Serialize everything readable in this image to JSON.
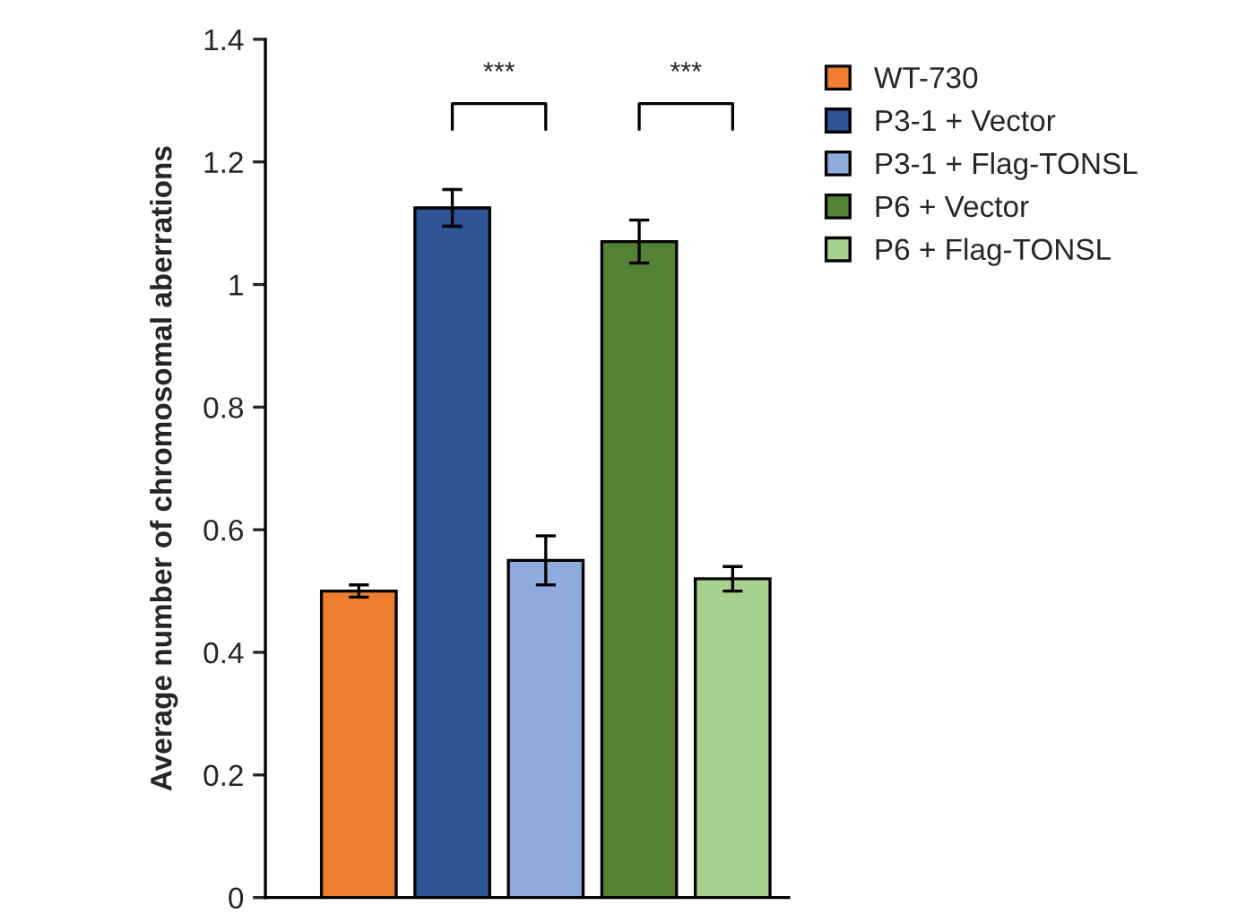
{
  "chart_data": {
    "type": "bar",
    "ylabel": "Average number of chromosomal aberrations",
    "categories": [
      null,
      null,
      null,
      null,
      null
    ],
    "series": [
      {
        "name": "WT-730",
        "color": "#ed7d31",
        "values": [
          0.5,
          null,
          null,
          null,
          null
        ],
        "errors": [
          0.01,
          null,
          null,
          null,
          null
        ]
      },
      {
        "name": "P3-1 + Vector",
        "color": "#2f5597",
        "values": [
          null,
          1.125,
          null,
          null,
          null
        ],
        "errors": [
          null,
          0.03,
          null,
          null,
          null
        ]
      },
      {
        "name": "P3-1 + Flag-TONSL",
        "color": "#8faadc",
        "values": [
          null,
          null,
          0.55,
          null,
          null
        ],
        "errors": [
          null,
          null,
          0.04,
          null,
          null
        ]
      },
      {
        "name": "P6 + Vector",
        "color": "#548235",
        "values": [
          null,
          null,
          null,
          1.07,
          null
        ],
        "errors": [
          null,
          null,
          null,
          0.035,
          null
        ]
      },
      {
        "name": "P6 + Flag-TONSL",
        "color": "#a9d18e",
        "values": [
          null,
          null,
          null,
          null,
          0.52
        ],
        "errors": [
          null,
          null,
          null,
          null,
          0.02
        ]
      }
    ],
    "ylim": [
      0,
      1.4
    ],
    "yticks": [
      0,
      0.2,
      0.4,
      0.6,
      0.8,
      1,
      1.2,
      1.4
    ],
    "annotations": [
      "***",
      "***"
    ],
    "grid": false,
    "legend": "right",
    "tick_labels": "y"
  }
}
